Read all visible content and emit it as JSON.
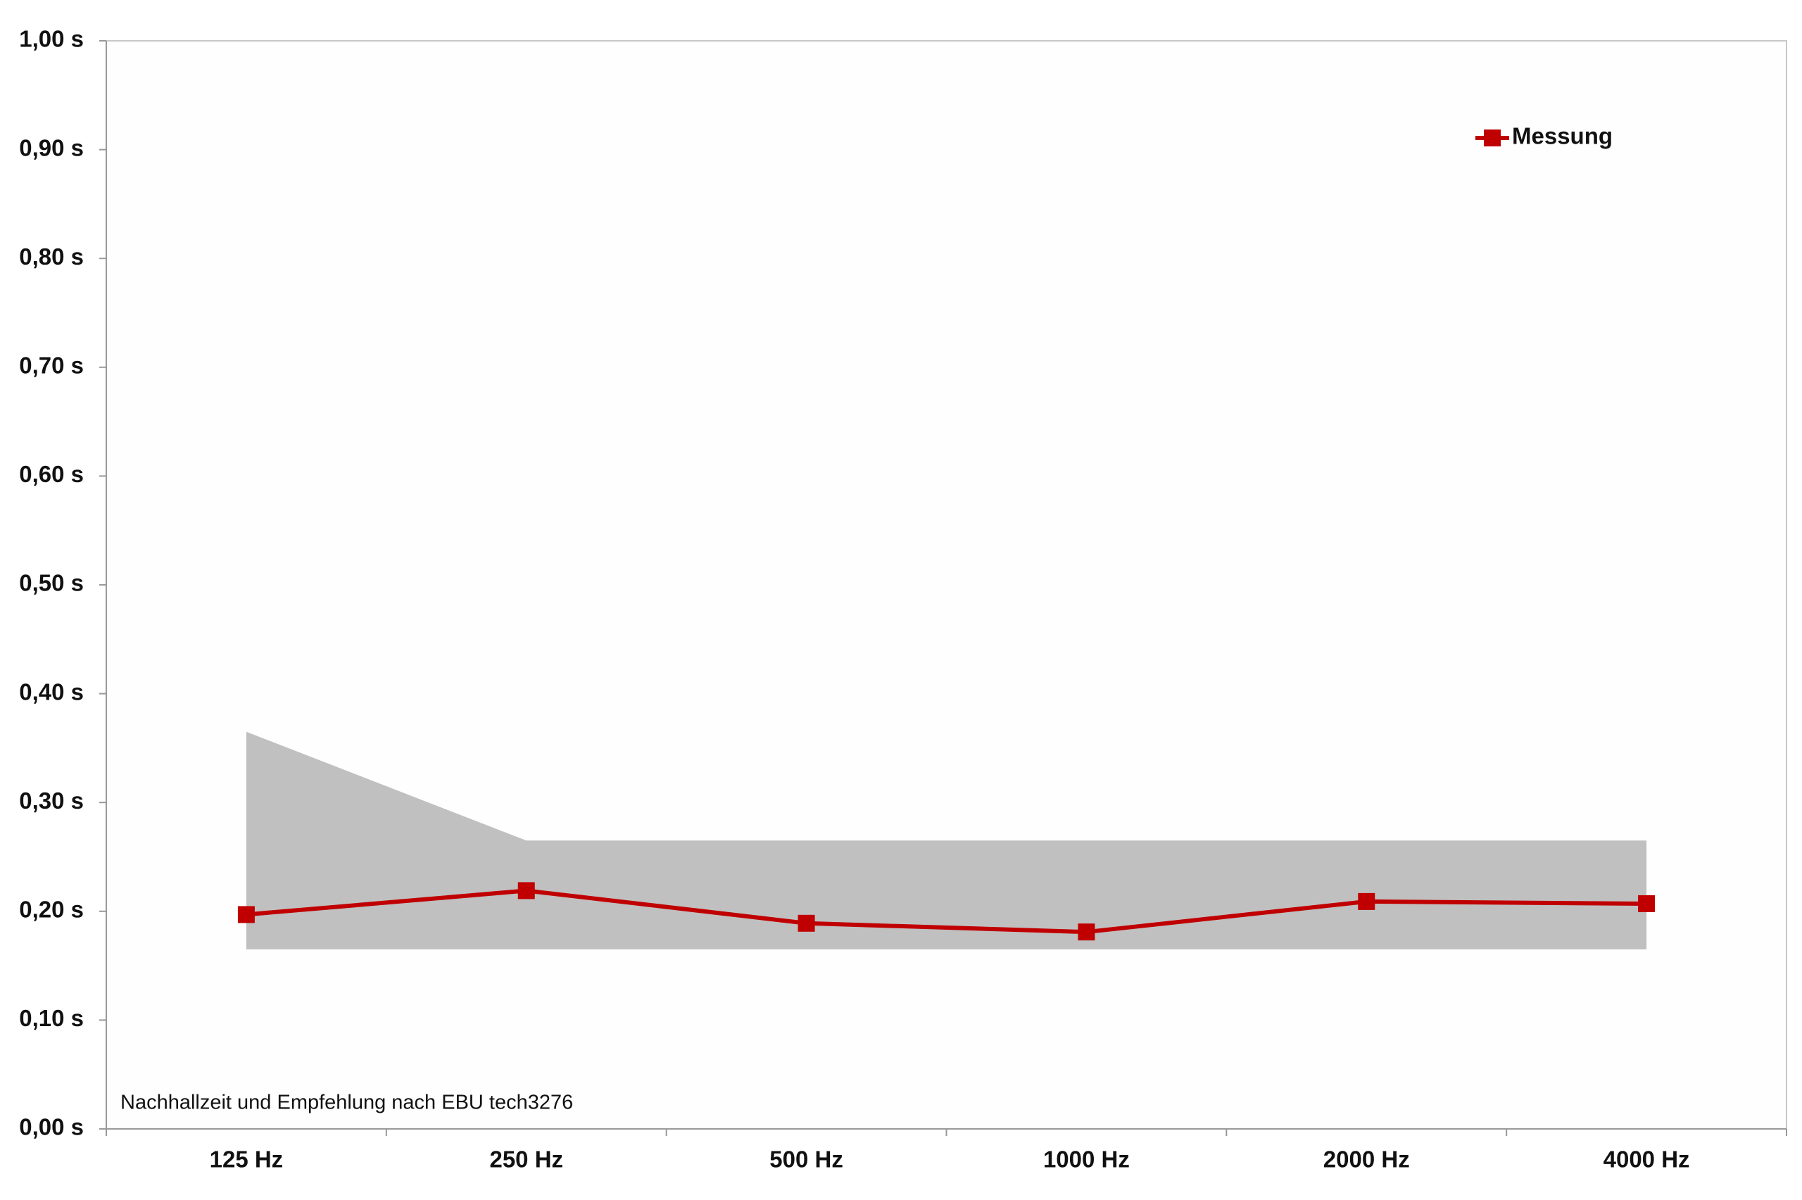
{
  "chart_data": {
    "type": "line",
    "annotation": "Nachhallzeit und Empfehlung nach EBU tech3276",
    "categories": [
      "125 Hz",
      "250 Hz",
      "500 Hz",
      "1000 Hz",
      "2000 Hz",
      "4000 Hz"
    ],
    "series": [
      {
        "name": "Messung",
        "color": "#c00000",
        "values": [
          0.197,
          0.219,
          0.189,
          0.181,
          0.209,
          0.207
        ]
      }
    ],
    "band": {
      "color": "#c0c0c0",
      "upper": [
        0.365,
        0.265,
        0.265,
        0.265,
        0.265,
        0.265
      ],
      "lower": [
        0.165,
        0.165,
        0.165,
        0.165,
        0.165,
        0.165
      ]
    },
    "ylim": [
      0,
      1
    ],
    "yticks": [
      {
        "value": 0,
        "label": "0,00 s"
      },
      {
        "value": 0.1,
        "label": "0,10 s"
      },
      {
        "value": 0.2,
        "label": "0,20 s"
      },
      {
        "value": 0.3,
        "label": "0,30 s"
      },
      {
        "value": 0.4,
        "label": "0,40 s"
      },
      {
        "value": 0.5,
        "label": "0,50 s"
      },
      {
        "value": 0.6,
        "label": "0,60 s"
      },
      {
        "value": 0.7,
        "label": "0,70 s"
      },
      {
        "value": 0.8,
        "label": "0,80 s"
      },
      {
        "value": 0.9,
        "label": "0,90 s"
      },
      {
        "value": 1,
        "label": "1,00 s"
      }
    ],
    "grid": false,
    "legend": "top-right"
  }
}
